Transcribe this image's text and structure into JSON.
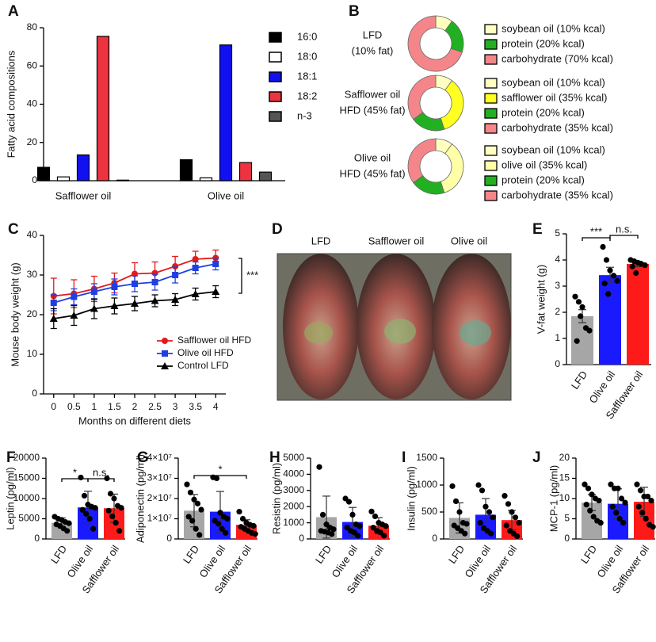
{
  "chart_data": [
    {
      "type": "bar",
      "panel": "A",
      "ylabel": "Fatty acid compositions",
      "categories": [
        "Safflower oil",
        "Olive oil"
      ],
      "series": [
        {
          "name": "16:0",
          "color": "#000000",
          "values": [
            7,
            11
          ]
        },
        {
          "name": "18:0",
          "color": "#ffffff",
          "values": [
            2,
            1.5
          ]
        },
        {
          "name": "18:1",
          "color": "#1010f0",
          "values": [
            13.5,
            71
          ]
        },
        {
          "name": "18:2",
          "color": "#ee3340",
          "values": [
            75.5,
            9.5
          ]
        },
        {
          "name": "n-3",
          "color": "#555555",
          "values": [
            0.3,
            4.5
          ]
        }
      ],
      "ylim": [
        0,
        80
      ],
      "yticks": [
        0,
        20,
        40,
        60,
        80
      ]
    },
    {
      "type": "donut",
      "panel": "B",
      "donuts": [
        {
          "title": [
            "LFD",
            "(10% fat)"
          ],
          "labels": [
            "soybean oil (10% kcal)",
            "protein (20% kcal)",
            "carbohydrate (70% kcal)"
          ],
          "values": [
            10,
            20,
            70
          ],
          "colors": [
            "#ffffc0",
            "#22b022",
            "#f4868a"
          ]
        },
        {
          "title": [
            "Safflower oil",
            "HFD (45% fat)"
          ],
          "labels": [
            "soybean oil (10% kcal)",
            "safflower oil (35% kcal)",
            "protein (20% kcal)",
            "carbohydrate (35% kcal)"
          ],
          "values": [
            10,
            35,
            20,
            35
          ],
          "colors": [
            "#ffffc0",
            "#ffff22",
            "#22b022",
            "#f4868a"
          ]
        },
        {
          "title": [
            "Olive oil",
            "HFD (45% fat)"
          ],
          "labels": [
            "soybean oil (10% kcal)",
            "olive oil (35% kcal)",
            "protein (20% kcal)",
            "carbohydrate (35% kcal)"
          ],
          "values": [
            10,
            35,
            20,
            35
          ],
          "colors": [
            "#ffffc0",
            "#ffffa8",
            "#22b022",
            "#f4868a"
          ]
        }
      ]
    },
    {
      "type": "line",
      "panel": "C",
      "xlabel": "Months on different diets",
      "ylabel": "Mouse body weight (g)",
      "x": [
        0,
        0.5,
        1,
        1.5,
        2,
        2.5,
        3,
        3.5,
        4
      ],
      "series": [
        {
          "name": "Safflower oil HFD",
          "color": "#e31a1c",
          "marker": "circle",
          "values": [
            24.7,
            25.3,
            26.5,
            28,
            30.3,
            30.5,
            32.2,
            34,
            34.3
          ],
          "errors": [
            4.5,
            3.5,
            3.2,
            2.5,
            2.8,
            2.8,
            2.5,
            2,
            2
          ]
        },
        {
          "name": "Olive oil HFD",
          "color": "#1f3fe0",
          "marker": "square",
          "values": [
            23,
            24.5,
            25.8,
            27,
            27.8,
            28.2,
            30,
            31.8,
            32.8
          ],
          "errors": [
            2,
            2,
            2,
            2,
            2,
            2,
            2,
            1.5,
            1.5
          ]
        },
        {
          "name": "Control LFD",
          "color": "#000000",
          "marker": "triangle",
          "values": [
            19,
            19.8,
            21.5,
            22.2,
            22.8,
            23.5,
            23.8,
            25.2,
            25.8
          ],
          "errors": [
            2.5,
            2.5,
            2.5,
            2,
            1.8,
            1.5,
            1.5,
            1.5,
            1.5
          ]
        }
      ],
      "xlim": [
        -0.25,
        4.25
      ],
      "xticks": [
        0,
        0.5,
        1,
        1.5,
        2,
        2.5,
        3,
        3.5,
        4
      ],
      "ylim": [
        0,
        40
      ],
      "yticks": [
        0,
        10,
        20,
        30,
        40
      ],
      "annotations": [
        "***"
      ]
    },
    {
      "type": "bar",
      "panel": "E",
      "ylabel": "V-fat weight (g)",
      "categories": [
        "LFD",
        "Olive oil",
        "Safflower oil"
      ],
      "colors": [
        "#a6a6a6",
        "#1a1aff",
        "#ff1a1a"
      ],
      "values": [
        1.85,
        3.42,
        3.85
      ],
      "errors": [
        0.25,
        0.3,
        0.1
      ],
      "points": [
        [
          2.6,
          2.4,
          2.2,
          1.4,
          1.3,
          0.9,
          1.85
        ],
        [
          4.5,
          4.0,
          3.6,
          3.4,
          3.2,
          3.1,
          2.7
        ],
        [
          4.0,
          3.95,
          3.9,
          3.85,
          3.8,
          3.75,
          3.5
        ]
      ],
      "ylim": [
        0,
        5
      ],
      "yticks": [
        0,
        1,
        2,
        3,
        4,
        5
      ],
      "annotations": [
        "***",
        "n.s."
      ]
    },
    {
      "type": "bar",
      "panel": "F",
      "ylabel": "Leptin (pg/ml)",
      "categories": [
        "LFD",
        "Olive oil",
        "Safflower oil"
      ],
      "colors": [
        "#a6a6a6",
        "#1a1aff",
        "#ff1a1a"
      ],
      "values": [
        4000,
        7800,
        7600
      ],
      "errors": [
        1200,
        4000,
        3500
      ],
      "points": [
        [
          5500,
          5000,
          4700,
          4200,
          3900,
          3600,
          3200,
          2600,
          2000
        ],
        [
          15200,
          10700,
          8500,
          8000,
          7700,
          7200,
          6200,
          5000,
          2500
        ],
        [
          15000,
          11200,
          10000,
          8200,
          7700,
          7000,
          5600,
          4000,
          2000
        ]
      ],
      "ylim": [
        0,
        20000
      ],
      "yticks": [
        0,
        5000,
        10000,
        15000,
        20000
      ],
      "annotations": [
        "*",
        "n.s."
      ]
    },
    {
      "type": "bar",
      "panel": "G",
      "ylabel": "Adiponectin (pg/ml)",
      "categories": [
        "LFD",
        "Olive oil",
        "Safflower oil"
      ],
      "colors": [
        "#a6a6a6",
        "#1a1aff",
        "#ff1a1a"
      ],
      "values": [
        14000000,
        13500000,
        7000000
      ],
      "errors": [
        8000000,
        10000000,
        2500000
      ],
      "points": [
        [
          27000000,
          23000000,
          19500000,
          17500000,
          14500000,
          11000000,
          9000000,
          5000000,
          2000000
        ],
        [
          30500000,
          30000000,
          13000000,
          11000000,
          10000000,
          9000000,
          7500000,
          5000000,
          3000000
        ],
        [
          13500000,
          10000000,
          8000000,
          7000000,
          6500000,
          6000000,
          5000000,
          4000000,
          3000000,
          2500000
        ]
      ],
      "ylim": [
        0,
        40000000
      ],
      "yticks": [
        0,
        {
          "value": 10000000,
          "label": "1×10⁷"
        },
        {
          "value": 20000000,
          "label": "2×10⁷"
        },
        {
          "value": 30000000,
          "label": "3×10⁷"
        },
        {
          "value": 40000000,
          "label": "4×10⁷"
        }
      ],
      "annotations": [
        "*"
      ]
    },
    {
      "type": "bar",
      "panel": "H",
      "ylabel": "Resistin (pg/ml)",
      "categories": [
        "LFD",
        "Olive oil",
        "Safflower oil"
      ],
      "colors": [
        "#a6a6a6",
        "#1a1aff",
        "#ff1a1a"
      ],
      "values": [
        1350,
        1050,
        820
      ],
      "errors": [
        1300,
        900,
        500
      ],
      "points": [
        [
          4450,
          1500,
          900,
          700,
          600,
          500,
          450,
          400,
          300
        ],
        [
          2500,
          2300,
          1500,
          900,
          800,
          700,
          500,
          400,
          200
        ],
        [
          1700,
          1400,
          1000,
          900,
          800,
          700,
          500,
          400,
          200
        ]
      ],
      "ylim": [
        0,
        5000
      ],
      "yticks": [
        0,
        1000,
        2000,
        3000,
        4000,
        5000
      ]
    },
    {
      "type": "bar",
      "panel": "I",
      "ylabel": "Insulin (pg/ml)",
      "categories": [
        "LFD",
        "Olive oil",
        "Safflower oil"
      ],
      "colors": [
        "#a6a6a6",
        "#1a1aff",
        "#ff1a1a"
      ],
      "values": [
        390,
        450,
        350
      ],
      "errors": [
        280,
        300,
        180
      ],
      "points": [
        [
          980,
          700,
          500,
          300,
          280,
          250,
          200,
          150,
          100
        ],
        [
          1000,
          900,
          600,
          500,
          400,
          300,
          200,
          150,
          100
        ],
        [
          800,
          650,
          500,
          400,
          300,
          250,
          150,
          100,
          50
        ]
      ],
      "ylim": [
        0,
        1500
      ],
      "yticks": [
        0,
        500,
        1000,
        1500
      ]
    },
    {
      "type": "bar",
      "panel": "J",
      "ylabel": "MCP-1 (pg/ml)",
      "categories": [
        "LFD",
        "Olive oil",
        "Safflower oil"
      ],
      "colors": [
        "#a6a6a6",
        "#1a1aff",
        "#ff1a1a"
      ],
      "values": [
        9,
        8.7,
        9.2
      ],
      "errors": [
        2,
        3.7,
        3.6
      ],
      "points": [
        [
          13.5,
          12.5,
          11,
          10,
          9.5,
          8.5,
          7,
          5.5,
          4.5,
          4
        ],
        [
          13.5,
          12.5,
          12.5,
          10,
          9,
          8,
          6.5,
          5,
          4
        ],
        [
          13.5,
          12,
          10.5,
          10.5,
          9.5,
          8,
          6.5,
          5,
          3.5,
          3
        ]
      ],
      "ylim": [
        0,
        20
      ],
      "yticks": [
        0,
        5,
        10,
        15,
        20
      ]
    }
  ],
  "photo": {
    "panel": "D",
    "labels": [
      "LFD",
      "Safflower oil",
      "Olive oil"
    ]
  }
}
